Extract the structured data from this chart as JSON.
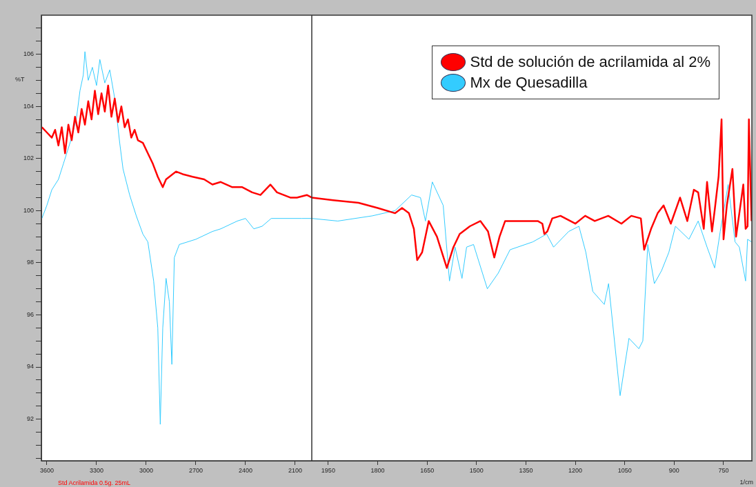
{
  "chart_data": [
    {
      "type": "line",
      "ylabel": "%T",
      "annotations": [
        "Std Acrilamida 0.5g. 25mL"
      ],
      "xlim": [
        3633,
        2000
      ],
      "xticks": [
        3600,
        3300,
        3000,
        2700,
        2400,
        2100
      ],
      "ylim": [
        90.4,
        107.5
      ],
      "yticks": [
        {
          "value": 90.5,
          "label": null
        },
        {
          "value": 91,
          "label": null
        },
        {
          "value": 91.5,
          "label": null
        },
        92,
        {
          "value": 92.5,
          "label": null
        },
        {
          "value": 93,
          "label": null
        },
        {
          "value": 93.5,
          "label": null
        },
        94,
        {
          "value": 94.5,
          "label": null
        },
        {
          "value": 95,
          "label": null
        },
        {
          "value": 95.5,
          "label": null
        },
        96,
        {
          "value": 96.5,
          "label": null
        },
        {
          "value": 97,
          "label": null
        },
        {
          "value": 97.5,
          "label": null
        },
        98,
        {
          "value": 98.5,
          "label": null
        },
        {
          "value": 99,
          "label": null
        },
        {
          "value": 99.5,
          "label": null
        },
        100,
        {
          "value": 100.5,
          "label": null
        },
        {
          "value": 101,
          "label": null
        },
        {
          "value": 101.5,
          "label": null
        },
        102,
        {
          "value": 102.5,
          "label": null
        },
        {
          "value": 103,
          "label": null
        },
        {
          "value": 103.5,
          "label": null
        },
        104,
        {
          "value": 104.5,
          "label": null
        },
        {
          "value": 105,
          "label": null
        },
        {
          "value": 105.5,
          "label": null
        },
        106,
        {
          "value": 106.5,
          "label": null
        },
        {
          "value": 107,
          "label": null
        }
      ],
      "grid": false,
      "legend": false,
      "marker": "none",
      "line_style": "solid",
      "series": [
        {
          "color": "#ff0000",
          "x": [
            3630,
            3600,
            3570,
            3550,
            3530,
            3510,
            3490,
            3470,
            3450,
            3430,
            3410,
            3390,
            3370,
            3350,
            3330,
            3310,
            3290,
            3270,
            3250,
            3230,
            3210,
            3190,
            3170,
            3150,
            3130,
            3110,
            3090,
            3070,
            3050,
            3020,
            2990,
            2960,
            2930,
            2900,
            2880,
            2860,
            2820,
            2780,
            2720,
            2650,
            2600,
            2550,
            2480,
            2420,
            2360,
            2310,
            2250,
            2210,
            2170,
            2130,
            2090,
            2030,
            2000
          ],
          "values": [
            103.2,
            103.0,
            102.8,
            103.1,
            102.5,
            103.2,
            102.2,
            103.3,
            102.7,
            103.6,
            103.0,
            103.9,
            103.3,
            104.2,
            103.5,
            104.6,
            103.7,
            104.5,
            103.8,
            104.8,
            103.6,
            104.3,
            103.4,
            104.0,
            103.2,
            103.5,
            102.8,
            103.1,
            102.7,
            102.6,
            102.2,
            101.8,
            101.3,
            100.9,
            101.2,
            101.3,
            101.5,
            101.4,
            101.3,
            101.2,
            101.0,
            101.1,
            100.9,
            100.9,
            100.7,
            100.6,
            101.0,
            100.7,
            100.6,
            100.5,
            100.5,
            100.6,
            100.5
          ]
        },
        {
          "color": "#33ccff",
          "x": [
            3630,
            3600,
            3570,
            3530,
            3500,
            3450,
            3420,
            3400,
            3380,
            3370,
            3350,
            3325,
            3300,
            3280,
            3250,
            3220,
            3190,
            3160,
            3140,
            3100,
            3060,
            3020,
            2990,
            2955,
            2930,
            2915,
            2900,
            2880,
            2860,
            2845,
            2830,
            2800,
            2700,
            2600,
            2550,
            2450,
            2400,
            2350,
            2300,
            2245,
            2150,
            2060,
            2000
          ],
          "values": [
            99.7,
            100.2,
            100.8,
            101.2,
            101.8,
            102.8,
            103.6,
            104.6,
            105.2,
            106.1,
            105.0,
            105.5,
            104.8,
            105.8,
            104.9,
            105.4,
            104.3,
            102.6,
            101.6,
            100.6,
            99.8,
            99.1,
            98.8,
            97.3,
            95.5,
            91.8,
            95.5,
            97.4,
            96.5,
            94.1,
            98.2,
            98.7,
            98.9,
            99.2,
            99.3,
            99.6,
            99.7,
            99.3,
            99.4,
            99.7,
            99.7,
            99.7,
            99.7
          ]
        }
      ]
    },
    {
      "type": "line",
      "xlabel": "1/cm",
      "xlim": [
        2000,
        664
      ],
      "xticks": [
        1950,
        1800,
        1650,
        1500,
        1350,
        1200,
        1050,
        900,
        750
      ],
      "ylim": [
        90.4,
        107.5
      ],
      "tick_labels": "x",
      "grid": false,
      "legend": "top right",
      "marker": "none",
      "line_style": "solid",
      "series": [
        {
          "name": "Std de solución de acrilamida al 2%",
          "color": "#ff0000",
          "x": [
            2000,
            1935,
            1858,
            1800,
            1747,
            1726,
            1705,
            1690,
            1680,
            1665,
            1645,
            1620,
            1590,
            1570,
            1551,
            1520,
            1488,
            1465,
            1446,
            1430,
            1413,
            1350,
            1314,
            1300,
            1294,
            1285,
            1270,
            1245,
            1200,
            1170,
            1141,
            1100,
            1060,
            1030,
            1001,
            991,
            970,
            950,
            932,
            910,
            882,
            860,
            840,
            827,
            810,
            800,
            785,
            777,
            765,
            756,
            750,
            740,
            723,
            712,
            702,
            690,
            683,
            677,
            673,
            665
          ],
          "values": [
            100.5,
            100.4,
            100.3,
            100.1,
            99.9,
            100.1,
            99.9,
            99.3,
            98.1,
            98.4,
            99.6,
            99.0,
            97.8,
            98.6,
            99.1,
            99.4,
            99.6,
            99.2,
            98.2,
            99.0,
            99.6,
            99.6,
            99.6,
            99.5,
            99.1,
            99.2,
            99.7,
            99.8,
            99.5,
            99.8,
            99.6,
            99.8,
            99.5,
            99.8,
            99.7,
            98.5,
            99.3,
            99.9,
            100.2,
            99.5,
            100.5,
            99.6,
            100.8,
            100.7,
            99.3,
            101.1,
            99.2,
            100.0,
            101.3,
            103.5,
            98.9,
            100.2,
            101.6,
            99.0,
            99.9,
            101.0,
            99.3,
            99.4,
            103.5,
            99.6
          ]
        },
        {
          "name": "Mx de Quesadilla",
          "color": "#33ccff",
          "x": [
            2000,
            1921,
            1816,
            1747,
            1697,
            1670,
            1655,
            1634,
            1601,
            1582,
            1565,
            1544,
            1530,
            1509,
            1467,
            1434,
            1398,
            1329,
            1287,
            1266,
            1220,
            1189,
            1168,
            1147,
            1112,
            1099,
            1064,
            1037,
            1007,
            995,
            980,
            960,
            938,
            916,
            896,
            855,
            827,
            800,
            777,
            760,
            736,
            715,
            702,
            683,
            677,
            665
          ],
          "values": [
            99.7,
            99.6,
            99.8,
            100.0,
            100.6,
            100.5,
            99.6,
            101.1,
            100.2,
            97.3,
            98.6,
            97.4,
            98.6,
            98.7,
            97.0,
            97.6,
            98.5,
            98.8,
            99.1,
            98.6,
            99.2,
            99.4,
            98.4,
            96.9,
            96.4,
            97.2,
            92.9,
            95.1,
            94.7,
            95.0,
            98.7,
            97.2,
            97.7,
            98.4,
            99.4,
            98.9,
            99.6,
            98.6,
            97.8,
            99.2,
            101.0,
            98.8,
            98.6,
            97.3,
            98.9,
            98.8
          ]
        }
      ]
    }
  ]
}
